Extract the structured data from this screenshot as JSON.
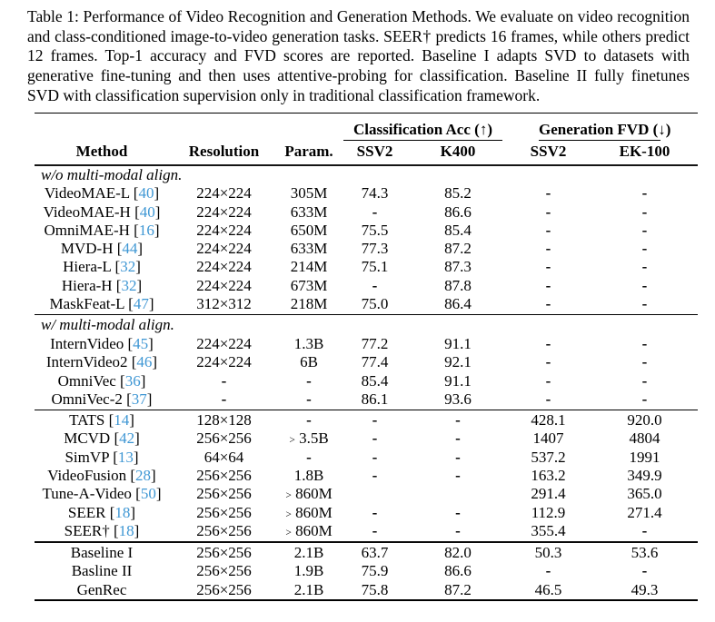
{
  "caption": "Table 1: Performance of Video Recognition and Generation Methods. We evaluate on video recognition and class-conditioned image-to-video generation tasks. SEER† predicts 16 frames, while others predict 12 frames. Top-1 accuracy and FVD scores are reported. Baseline I adapts SVD to datasets with generative fine-tuning and then uses attentive-probing for classification. Baseline II fully finetunes SVD with classification supervision only in traditional classification framework.",
  "table": {
    "group_headers": [
      {
        "label": "Classification Acc (↑)"
      },
      {
        "label": "Generation FVD (↓)"
      }
    ],
    "columns": [
      "Method",
      "Resolution",
      "Param.",
      "SSV2",
      "K400",
      "SSV2",
      "EK-100"
    ],
    "colors": {
      "citation_link": "#3f97d4"
    },
    "sections": [
      {
        "label": "w/o multi-modal align.",
        "rows": [
          {
            "method": "VideoMAE-L",
            "cite": "40",
            "resolution": "224×224",
            "param": "305M",
            "cls_ssv2": "74.3",
            "cls_k400": "85.2",
            "fvd_ssv2": "-",
            "fvd_ek100": "-"
          },
          {
            "method": "VideoMAE-H",
            "cite": "40",
            "resolution": "224×224",
            "param": "633M",
            "cls_ssv2": "-",
            "cls_k400": "86.6",
            "fvd_ssv2": "-",
            "fvd_ek100": "-"
          },
          {
            "method": "OmniMAE-H",
            "cite": "16",
            "resolution": "224×224",
            "param": "650M",
            "cls_ssv2": "75.5",
            "cls_k400": "85.4",
            "fvd_ssv2": "-",
            "fvd_ek100": "-"
          },
          {
            "method": "MVD-H",
            "cite": "44",
            "resolution": "224×224",
            "param": "633M",
            "cls_ssv2": "77.3",
            "cls_k400": "87.2",
            "fvd_ssv2": "-",
            "fvd_ek100": "-"
          },
          {
            "method": "Hiera-L",
            "cite": "32",
            "resolution": "224×224",
            "param": "214M",
            "cls_ssv2": "75.1",
            "cls_k400": "87.3",
            "fvd_ssv2": "-",
            "fvd_ek100": "-"
          },
          {
            "method": "Hiera-H",
            "cite": "32",
            "resolution": "224×224",
            "param": "673M",
            "cls_ssv2": "-",
            "cls_k400": "87.8",
            "fvd_ssv2": "-",
            "fvd_ek100": "-"
          },
          {
            "method": "MaskFeat-L",
            "cite": "47",
            "resolution": "312×312",
            "param": "218M",
            "cls_ssv2": "75.0",
            "cls_k400": "86.4",
            "fvd_ssv2": "-",
            "fvd_ek100": "-"
          }
        ]
      },
      {
        "label": "w/ multi-modal align.",
        "rows": [
          {
            "method": "InternVideo",
            "cite": "45",
            "resolution": "224×224",
            "param": "1.3B",
            "cls_ssv2": "77.2",
            "cls_k400": "91.1",
            "fvd_ssv2": "-",
            "fvd_ek100": "-"
          },
          {
            "method": "InternVideo2",
            "cite": "46",
            "resolution": "224×224",
            "param": "6B",
            "cls_ssv2": "77.4",
            "cls_k400": "92.1",
            "fvd_ssv2": "-",
            "fvd_ek100": "-"
          },
          {
            "method": "OmniVec",
            "cite": "36",
            "resolution": "-",
            "param": "-",
            "cls_ssv2": "85.4",
            "cls_k400": "91.1",
            "fvd_ssv2": "-",
            "fvd_ek100": "-"
          },
          {
            "method": "OmniVec-2",
            "cite": "37",
            "resolution": "-",
            "param": "-",
            "cls_ssv2": "86.1",
            "cls_k400": "93.6",
            "fvd_ssv2": "-",
            "fvd_ek100": "-"
          }
        ]
      },
      {
        "label": null,
        "rows": [
          {
            "method": "TATS",
            "cite": "14",
            "resolution": "128×128",
            "param": "-",
            "cls_ssv2": "-",
            "cls_k400": "-",
            "fvd_ssv2": "428.1",
            "fvd_ek100": "920.0"
          },
          {
            "method": "MCVD",
            "cite": "42",
            "resolution": "256×256",
            "param": ">3.5B",
            "cls_ssv2": "-",
            "cls_k400": "-",
            "fvd_ssv2": "1407",
            "fvd_ek100": "4804"
          },
          {
            "method": "SimVP",
            "cite": "13",
            "resolution": "64×64",
            "param": "-",
            "cls_ssv2": "-",
            "cls_k400": "-",
            "fvd_ssv2": "537.2",
            "fvd_ek100": "1991"
          },
          {
            "method": "VideoFusion",
            "cite": "28",
            "resolution": "256×256",
            "param": "1.8B",
            "cls_ssv2": "-",
            "cls_k400": "-",
            "fvd_ssv2": "163.2",
            "fvd_ek100": "349.9"
          },
          {
            "method": "Tune-A-Video",
            "cite": "50",
            "resolution": "256×256",
            "param": ">860M",
            "cls_ssv2": "",
            "cls_k400": "",
            "fvd_ssv2": "291.4",
            "fvd_ek100": "365.0"
          },
          {
            "method": "SEER",
            "cite": "18",
            "resolution": "256×256",
            "param": ">860M",
            "cls_ssv2": "-",
            "cls_k400": "-",
            "fvd_ssv2": "112.9",
            "fvd_ek100": "271.4"
          },
          {
            "method": "SEER†",
            "cite": "18",
            "resolution": "256×256",
            "param": ">860M",
            "cls_ssv2": "-",
            "cls_k400": "-",
            "fvd_ssv2": "355.4",
            "fvd_ek100": "-"
          }
        ]
      },
      {
        "label": null,
        "heavy_divider": true,
        "rows": [
          {
            "method": "Baseline I",
            "cite": null,
            "resolution": "256×256",
            "param": "2.1B",
            "cls_ssv2": "63.7",
            "cls_k400": "82.0",
            "fvd_ssv2": "50.3",
            "fvd_ek100": "53.6"
          },
          {
            "method": "Basline II",
            "cite": null,
            "resolution": "256×256",
            "param": "1.9B",
            "cls_ssv2": "75.9",
            "cls_k400": "86.6",
            "fvd_ssv2": "-",
            "fvd_ek100": "-"
          },
          {
            "method": "GenRec",
            "cite": null,
            "resolution": "256×256",
            "param": "2.1B",
            "cls_ssv2": "75.8",
            "cls_k400": "87.2",
            "fvd_ssv2": "46.5",
            "fvd_ek100": "49.3"
          }
        ]
      }
    ]
  }
}
